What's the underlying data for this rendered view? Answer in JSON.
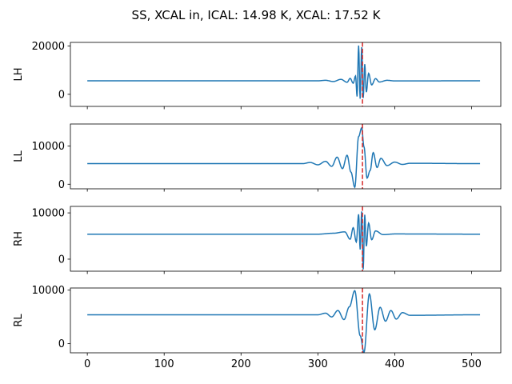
{
  "figure": {
    "title": "SS, XCAL in, ICAL: 14.98 K, XCAL: 17.52 K"
  },
  "colors": {
    "series": "#1f77b4",
    "marker": "#d62728"
  },
  "chart_data": [
    {
      "type": "line",
      "ylabel": "LH",
      "xlim": [
        -22,
        538
      ],
      "ylim": [
        -5000,
        21500
      ],
      "yticks": [
        0,
        20000
      ],
      "ytick_labels": [
        "0",
        "20000"
      ],
      "xticks": [
        0,
        100,
        200,
        300,
        400,
        500
      ],
      "xtick_labels": [],
      "marker_x": 358,
      "baseline": 5600,
      "x": [
        0,
        300,
        310,
        320,
        330,
        338,
        342,
        346,
        349,
        351,
        353,
        355,
        357,
        359,
        361,
        363,
        366,
        370,
        375,
        380,
        390,
        400,
        511
      ],
      "values": [
        5600,
        5600,
        5800,
        5300,
        6200,
        5000,
        6600,
        4600,
        7600,
        -900,
        20200,
        -1800,
        19500,
        -1500,
        12500,
        900,
        8700,
        3900,
        6500,
        5100,
        5800,
        5550,
        5600
      ]
    },
    {
      "type": "line",
      "ylabel": "LL",
      "xlim": [
        -22,
        538
      ],
      "ylim": [
        -1200,
        15800
      ],
      "yticks": [
        0,
        10000
      ],
      "ytick_labels": [
        "0",
        "10000"
      ],
      "xticks": [
        0,
        100,
        200,
        300,
        400,
        500
      ],
      "xtick_labels": [],
      "marker_x": 358,
      "baseline": 5400,
      "x": [
        0,
        280,
        290,
        300,
        310,
        318,
        325,
        332,
        338,
        343,
        348,
        353,
        357,
        360,
        364,
        368,
        372,
        377,
        382,
        390,
        400,
        410,
        420,
        511
      ],
      "values": [
        5400,
        5400,
        5700,
        5100,
        6000,
        4700,
        7100,
        4100,
        7600,
        3200,
        -800,
        12500,
        14800,
        9800,
        1600,
        3600,
        8300,
        4400,
        6800,
        4900,
        5800,
        5200,
        5500,
        5400
      ]
    },
    {
      "type": "line",
      "ylabel": "RH",
      "xlim": [
        -22,
        538
      ],
      "ylim": [
        -2600,
        11400
      ],
      "yticks": [
        0,
        10000
      ],
      "ytick_labels": [
        "0",
        "10000"
      ],
      "xticks": [
        0,
        100,
        200,
        300,
        400,
        500
      ],
      "xtick_labels": [],
      "marker_x": 358,
      "baseline": 5400,
      "x": [
        0,
        300,
        320,
        335,
        342,
        346,
        350,
        353,
        355,
        357,
        359,
        361,
        363,
        366,
        370,
        375,
        385,
        400,
        511
      ],
      "values": [
        5400,
        5400,
        5600,
        5900,
        4300,
        6800,
        3700,
        9700,
        2100,
        10300,
        -2200,
        9600,
        2800,
        7800,
        4200,
        6100,
        5300,
        5450,
        5400
      ]
    },
    {
      "type": "line",
      "ylabel": "RL",
      "xlim": [
        -22,
        538
      ],
      "ylim": [
        -1700,
        10400
      ],
      "yticks": [
        0,
        10000
      ],
      "ytick_labels": [
        "0",
        "10000"
      ],
      "xticks": [
        0,
        100,
        200,
        300,
        400,
        500
      ],
      "xtick_labels": [
        "0",
        "100",
        "200",
        "300",
        "400",
        "500"
      ],
      "marker_x": 358,
      "baseline": 5400,
      "x": [
        0,
        300,
        310,
        318,
        326,
        334,
        341,
        348,
        355,
        360,
        367,
        374,
        381,
        388,
        395,
        402,
        410,
        420,
        511
      ],
      "values": [
        5400,
        5400,
        5700,
        5000,
        6200,
        4500,
        6900,
        9900,
        1500,
        -1600,
        9300,
        2600,
        6800,
        4200,
        6200,
        4600,
        5800,
        5300,
        5400
      ]
    }
  ]
}
